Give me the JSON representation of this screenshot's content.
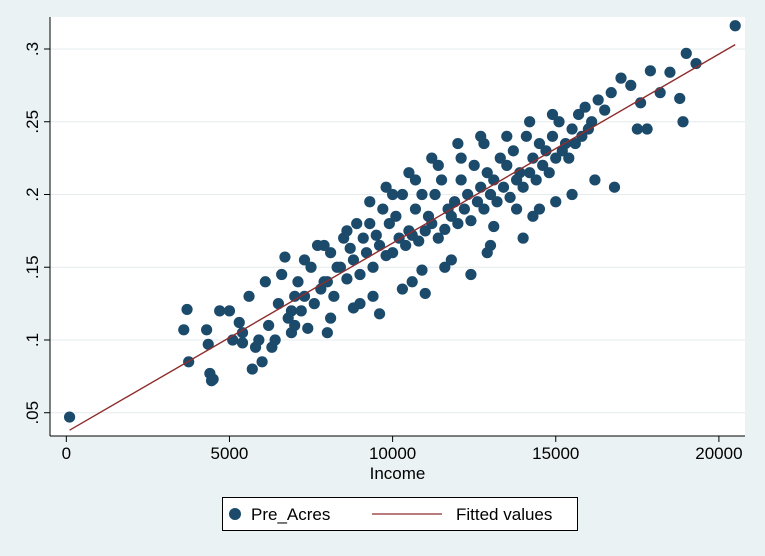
{
  "chart_data": {
    "type": "scatter",
    "title": "",
    "xlabel": "Income",
    "ylabel": "",
    "xlim": [
      -500,
      20800
    ],
    "ylim": [
      0.034,
      0.322
    ],
    "xticks": [
      0,
      5000,
      10000,
      15000,
      20000
    ],
    "xtick_labels": [
      "0",
      "5000",
      "10000",
      "15000",
      "20000"
    ],
    "yticks": [
      0.05,
      0.1,
      0.15,
      0.2,
      0.25,
      0.3
    ],
    "ytick_labels": [
      ".05",
      ".1",
      ".15",
      ".2",
      ".25",
      ".3"
    ],
    "grid": true,
    "legend_position": "bottom",
    "colors": {
      "points": "#1b4a6b",
      "fit_line": "#8f2d2d",
      "plot_bg": "#ffffff",
      "page_bg": "#eaf2f3",
      "grid": "#e4ecee"
    },
    "series": [
      {
        "name": "Pre_Acres",
        "kind": "scatter",
        "x": [
          100,
          3600,
          3700,
          3750,
          4300,
          4350,
          4400,
          4450,
          4500,
          4700,
          5000,
          5100,
          5300,
          5400,
          5600,
          5700,
          5900,
          6100,
          6300,
          6500,
          6700,
          6900,
          7100,
          7300,
          7500,
          7700,
          7900,
          8100,
          8300,
          8500,
          8700,
          8900,
          9100,
          9300,
          9500,
          9700,
          9900,
          10100,
          10300,
          10500,
          10700,
          10900,
          11100,
          11300,
          11500,
          11700,
          11900,
          12100,
          12300,
          12500,
          12700,
          12900,
          13100,
          13300,
          13500,
          13700,
          13900,
          14100,
          14300,
          14500,
          14700,
          14900,
          15100,
          15300,
          15500,
          15700,
          15900,
          16100,
          16300,
          16500,
          16700,
          17000,
          17300,
          17600,
          17900,
          18200,
          18500,
          18900,
          19000,
          19300,
          20500,
          6000,
          6200,
          6400,
          6800,
          7000,
          7200,
          7400,
          7600,
          7800,
          8000,
          8200,
          8400,
          8600,
          8800,
          9000,
          9200,
          9400,
          9600,
          9800,
          10000,
          10200,
          10400,
          10600,
          10800,
          11000,
          11200,
          11400,
          11600,
          11800,
          12000,
          12200,
          12400,
          12600,
          12800,
          13000,
          13200,
          13400,
          13600,
          13800,
          14000,
          14200,
          14400,
          14600,
          14800,
          15000,
          15200,
          15400,
          15600,
          15800,
          16000,
          6600,
          7300,
          7900,
          8600,
          9300,
          10000,
          10700,
          11400,
          12100,
          12800,
          13500,
          14200,
          14900,
          5800,
          6900,
          8100,
          9400,
          10600,
          11800,
          13000,
          14300,
          15500,
          16800,
          17500,
          9000,
          10300,
          11600,
          12900,
          14000,
          9800,
          10500,
          11200,
          12000,
          12700,
          8000,
          9600,
          11000,
          12400,
          13800,
          15000,
          5400,
          7000,
          8800,
          10900,
          13100,
          14500,
          16200,
          17800,
          18800
        ],
        "y": [
          0.047,
          0.107,
          0.121,
          0.085,
          0.107,
          0.097,
          0.077,
          0.072,
          0.073,
          0.12,
          0.12,
          0.1,
          0.112,
          0.105,
          0.13,
          0.08,
          0.1,
          0.14,
          0.095,
          0.125,
          0.157,
          0.12,
          0.14,
          0.13,
          0.15,
          0.165,
          0.14,
          0.16,
          0.15,
          0.17,
          0.163,
          0.18,
          0.17,
          0.18,
          0.172,
          0.19,
          0.18,
          0.185,
          0.2,
          0.175,
          0.19,
          0.2,
          0.185,
          0.2,
          0.21,
          0.19,
          0.195,
          0.21,
          0.2,
          0.22,
          0.205,
          0.215,
          0.21,
          0.225,
          0.22,
          0.23,
          0.215,
          0.24,
          0.225,
          0.235,
          0.23,
          0.24,
          0.25,
          0.235,
          0.245,
          0.255,
          0.26,
          0.25,
          0.265,
          0.258,
          0.27,
          0.28,
          0.275,
          0.263,
          0.285,
          0.27,
          0.284,
          0.25,
          0.297,
          0.29,
          0.316,
          0.085,
          0.11,
          0.1,
          0.115,
          0.13,
          0.12,
          0.108,
          0.125,
          0.135,
          0.14,
          0.13,
          0.15,
          0.142,
          0.155,
          0.145,
          0.16,
          0.15,
          0.165,
          0.158,
          0.16,
          0.17,
          0.165,
          0.172,
          0.168,
          0.175,
          0.18,
          0.17,
          0.176,
          0.185,
          0.18,
          0.19,
          0.182,
          0.195,
          0.19,
          0.2,
          0.195,
          0.205,
          0.198,
          0.21,
          0.205,
          0.215,
          0.21,
          0.22,
          0.215,
          0.225,
          0.23,
          0.225,
          0.235,
          0.24,
          0.245,
          0.145,
          0.155,
          0.165,
          0.175,
          0.195,
          0.2,
          0.21,
          0.22,
          0.225,
          0.235,
          0.24,
          0.25,
          0.255,
          0.095,
          0.105,
          0.115,
          0.13,
          0.14,
          0.155,
          0.165,
          0.185,
          0.2,
          0.205,
          0.245,
          0.125,
          0.135,
          0.15,
          0.16,
          0.17,
          0.205,
          0.215,
          0.225,
          0.235,
          0.24,
          0.105,
          0.118,
          0.132,
          0.145,
          0.19,
          0.195,
          0.098,
          0.11,
          0.122,
          0.148,
          0.178,
          0.19,
          0.21,
          0.245,
          0.266
        ]
      },
      {
        "name": "Fitted values",
        "kind": "line",
        "x": [
          100,
          20500
        ],
        "y": [
          0.038,
          0.303
        ]
      }
    ]
  }
}
